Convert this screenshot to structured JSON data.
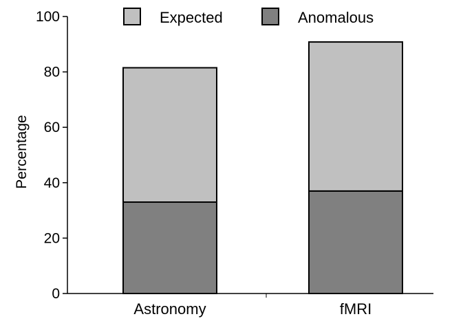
{
  "chart_data": {
    "type": "bar",
    "stacked": true,
    "categories": [
      "Astronomy",
      "fMRI"
    ],
    "series": [
      {
        "name": "Anomalous",
        "values": [
          33,
          37
        ],
        "color": "#808080"
      },
      {
        "name": "Expected",
        "values": [
          48.5,
          53.8
        ],
        "color": "#c0c0c0"
      }
    ],
    "legend_order": [
      "Expected",
      "Anomalous"
    ],
    "legend_position": "top",
    "ylabel": "Percentage",
    "ylim": [
      0,
      100
    ],
    "yticks": [
      0,
      20,
      40,
      60,
      80,
      100
    ],
    "grid": false
  }
}
